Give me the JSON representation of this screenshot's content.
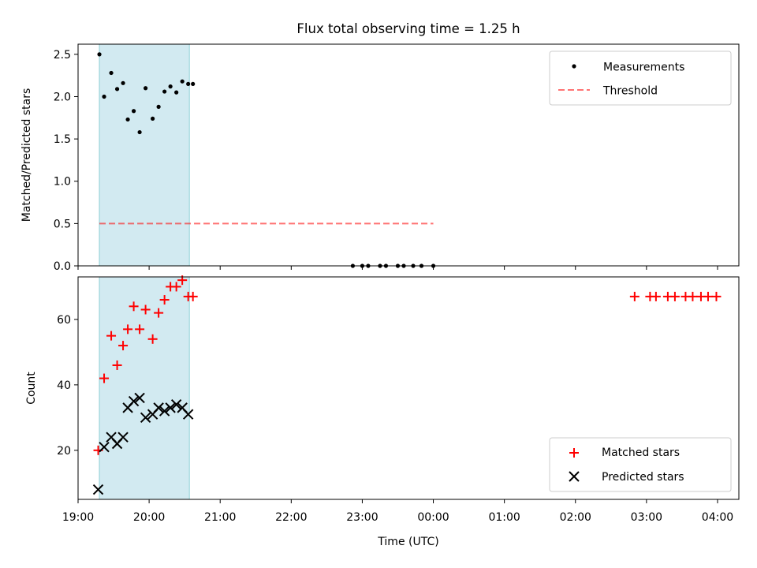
{
  "title": "Flux total observing time = 1.25 h",
  "colors": {
    "shade": "#add8e6",
    "measurement": "#000000",
    "threshold": "#ff0000",
    "matched": "#ff0000",
    "predicted": "#000000"
  },
  "chart_data": [
    {
      "type": "scatter",
      "panel": "top",
      "ylabel": "Matched/Predicted stars",
      "ylim": [
        0,
        2.62
      ],
      "yticks": [
        0.0,
        0.5,
        1.0,
        1.5,
        2.0,
        2.5
      ],
      "ytick_labels": [
        "0.0",
        "0.5",
        "1.0",
        "1.5",
        "2.0",
        "2.5"
      ],
      "xlim": [
        "19:00",
        "04:18"
      ],
      "shaded_span": [
        "19:18",
        "20:34"
      ],
      "legend_position": "top-right",
      "series": [
        {
          "name": "Measurements",
          "marker": "dot",
          "x": [
            "19:18",
            "19:22",
            "19:28",
            "19:33",
            "19:38",
            "19:42",
            "19:47",
            "19:52",
            "19:57",
            "20:03",
            "20:08",
            "20:13",
            "20:18",
            "20:23",
            "20:28",
            "20:33",
            "20:37",
            "22:52",
            "23:00",
            "23:05",
            "23:15",
            "23:20",
            "23:30",
            "23:35",
            "23:43",
            "23:50",
            "24:00"
          ],
          "y": [
            2.5,
            2.0,
            2.28,
            2.09,
            2.16,
            1.73,
            1.83,
            1.58,
            2.1,
            1.74,
            1.88,
            2.06,
            2.12,
            2.05,
            2.18,
            2.15,
            2.15,
            0.0,
            0.0,
            0.0,
            0.0,
            0.0,
            0.0,
            0.0,
            0.0,
            0.0,
            0.0
          ]
        },
        {
          "name": "Threshold",
          "style": "dashed",
          "x": [
            "19:18",
            "24:00"
          ],
          "y": [
            0.5,
            0.5
          ]
        }
      ]
    },
    {
      "type": "scatter",
      "panel": "bottom",
      "ylabel": "Count",
      "xlabel": "Time (UTC)",
      "ylim": [
        5,
        73
      ],
      "yticks": [
        20,
        40,
        60
      ],
      "ytick_labels": [
        "20",
        "40",
        "60"
      ],
      "xlim": [
        "19:00",
        "04:18"
      ],
      "xtick_labels": [
        "19:00",
        "20:00",
        "21:00",
        "22:00",
        "23:00",
        "00:00",
        "01:00",
        "02:00",
        "03:00",
        "04:00"
      ],
      "shaded_span": [
        "19:18",
        "20:34"
      ],
      "legend_position": "bottom-right",
      "series": [
        {
          "name": "Matched stars",
          "marker": "plus",
          "x": [
            "19:17",
            "19:22",
            "19:28",
            "19:33",
            "19:38",
            "19:42",
            "19:47",
            "19:52",
            "19:57",
            "20:03",
            "20:08",
            "20:13",
            "20:18",
            "20:23",
            "20:28",
            "20:33",
            "20:37",
            "02:50",
            "03:03",
            "03:08",
            "03:18",
            "03:24",
            "03:33",
            "03:39",
            "03:46",
            "03:52",
            "03:59"
          ],
          "y": [
            20,
            42,
            55,
            46,
            52,
            57,
            64,
            57,
            63,
            54,
            62,
            66,
            70,
            70,
            72,
            67,
            67,
            67,
            67,
            67,
            67,
            67,
            67,
            67,
            67,
            67,
            67
          ]
        },
        {
          "name": "Predicted stars",
          "marker": "x",
          "x": [
            "19:17",
            "19:22",
            "19:28",
            "19:33",
            "19:38",
            "19:42",
            "19:47",
            "19:52",
            "19:57",
            "20:03",
            "20:08",
            "20:13",
            "20:18",
            "20:23",
            "20:28",
            "20:33"
          ],
          "y": [
            8,
            21,
            24,
            22,
            24,
            33,
            35,
            36,
            30,
            31,
            33,
            32,
            33,
            34,
            33,
            31
          ]
        }
      ]
    }
  ]
}
